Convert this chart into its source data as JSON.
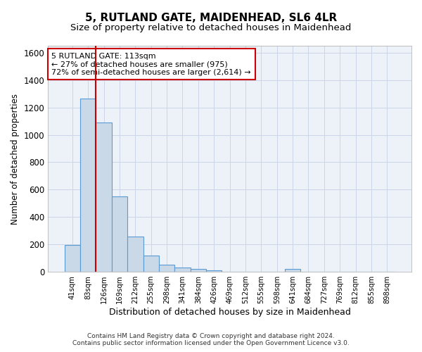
{
  "title": "5, RUTLAND GATE, MAIDENHEAD, SL6 4LR",
  "subtitle": "Size of property relative to detached houses in Maidenhead",
  "xlabel": "Distribution of detached houses by size in Maidenhead",
  "ylabel": "Number of detached properties",
  "categories": [
    "41sqm",
    "83sqm",
    "126sqm",
    "169sqm",
    "212sqm",
    "255sqm",
    "298sqm",
    "341sqm",
    "384sqm",
    "426sqm",
    "469sqm",
    "512sqm",
    "555sqm",
    "598sqm",
    "641sqm",
    "684sqm",
    "727sqm",
    "769sqm",
    "812sqm",
    "855sqm",
    "898sqm"
  ],
  "values": [
    195,
    1265,
    1090,
    550,
    260,
    120,
    55,
    30,
    20,
    10,
    0,
    0,
    0,
    0,
    20,
    0,
    0,
    0,
    0,
    0,
    0
  ],
  "bar_color": "#c9d9e8",
  "bar_edge_color": "#5b9bd5",
  "annotation_line1": "5 RUTLAND GATE: 113sqm",
  "annotation_line2": "← 27% of detached houses are smaller (975)",
  "annotation_line3": "72% of semi-detached houses are larger (2,614) →",
  "annotation_box_color": "#ffffff",
  "annotation_border_color": "#cc0000",
  "red_line_x": 1.5,
  "ylim": [
    0,
    1650
  ],
  "yticks": [
    0,
    200,
    400,
    600,
    800,
    1000,
    1200,
    1400,
    1600
  ],
  "grid_color": "#cdd6e8",
  "bg_color": "#edf1f8",
  "footer_line1": "Contains HM Land Registry data © Crown copyright and database right 2024.",
  "footer_line2": "Contains public sector information licensed under the Open Government Licence v3.0.",
  "title_fontsize": 11,
  "subtitle_fontsize": 9.5
}
